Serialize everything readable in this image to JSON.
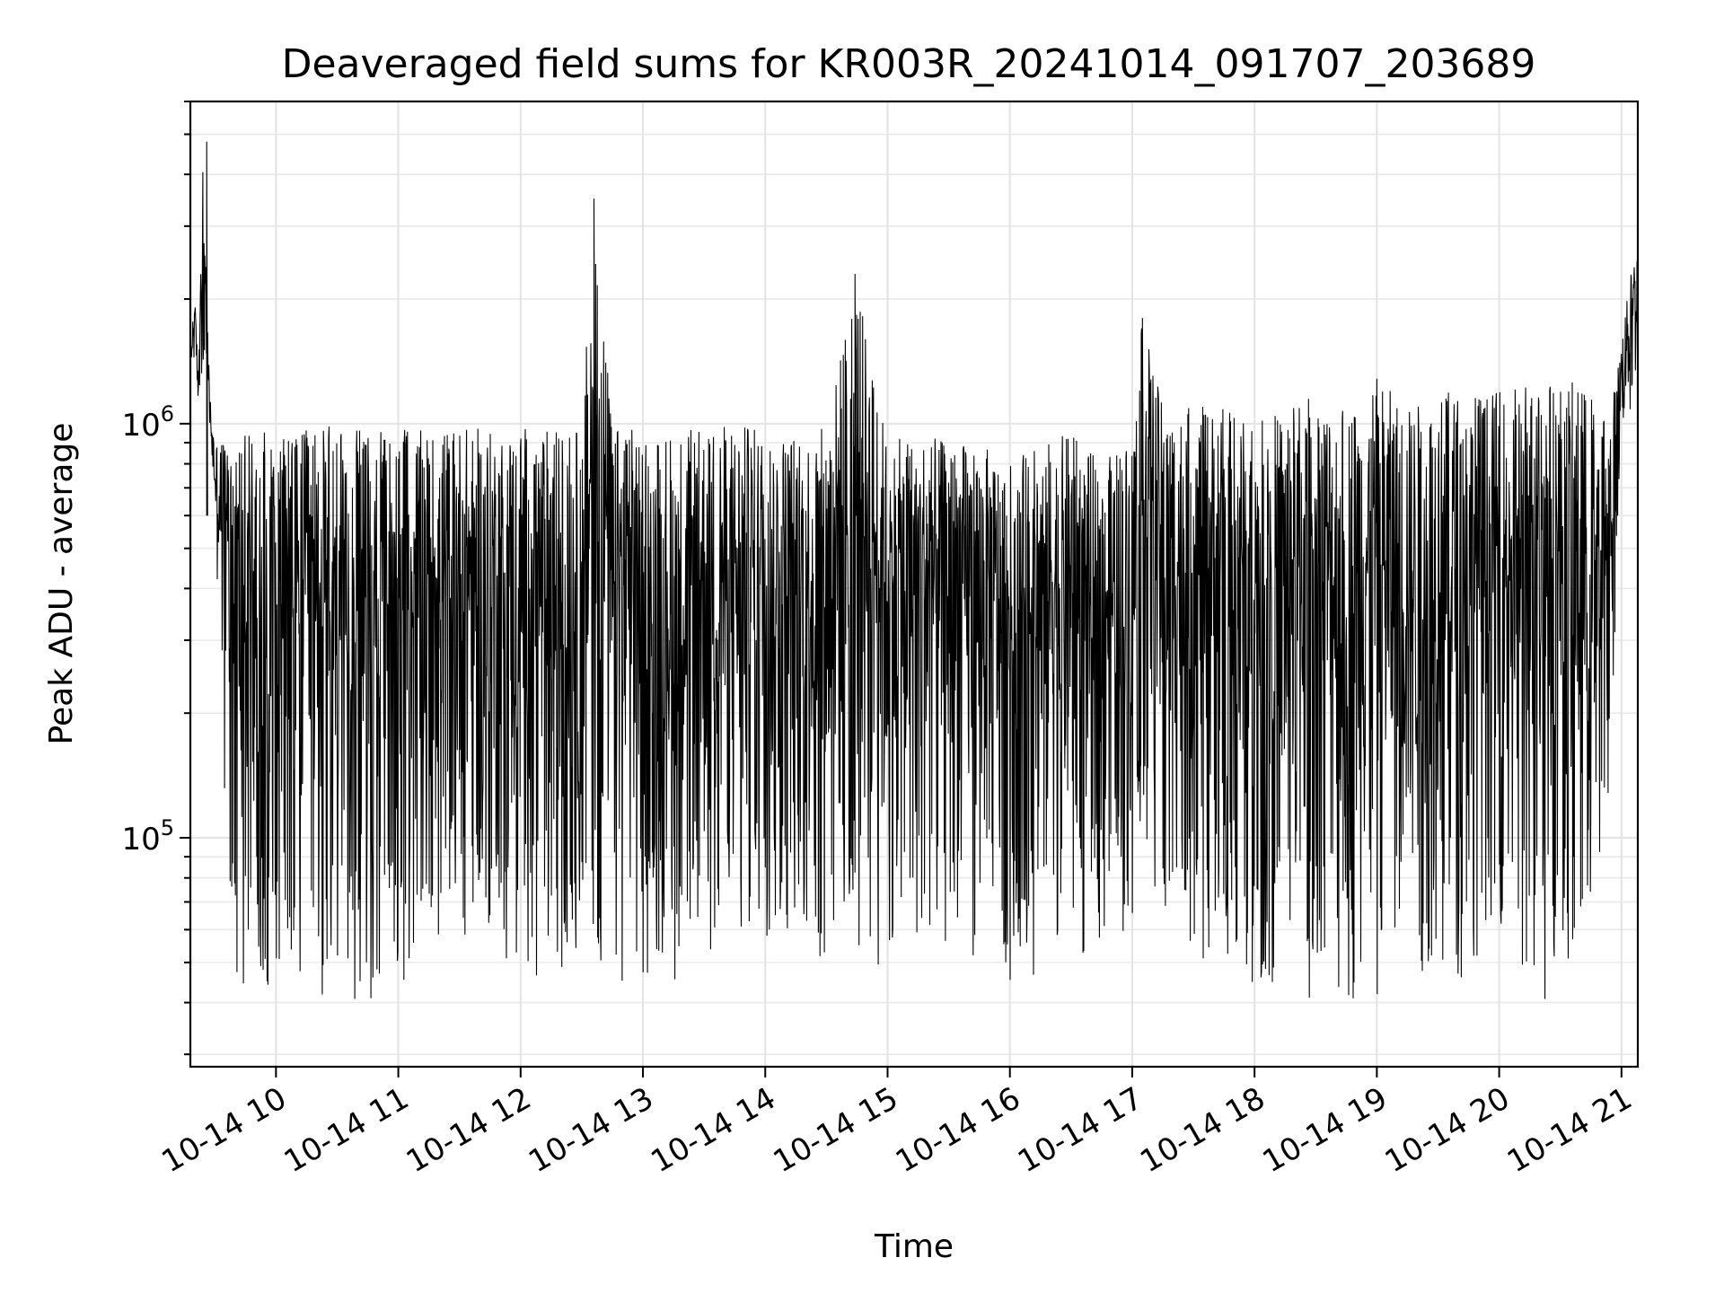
{
  "chart_data": {
    "type": "line",
    "title": "Deaveraged field sums for KR003R_20241014_091707_203689",
    "xlabel": "Time",
    "ylabel": "Peak ADU - average",
    "yscale": "log",
    "grid": true,
    "legend": "none",
    "line_color": "#000000",
    "xlim": [
      "2024-10-14 09:18",
      "2024-10-14 21:08"
    ],
    "ylim": [
      28000,
      6000000
    ],
    "x_ticks": [
      {
        "value": "2024-10-14 10:00",
        "label": "10-14 10"
      },
      {
        "value": "2024-10-14 11:00",
        "label": "10-14 11"
      },
      {
        "value": "2024-10-14 12:00",
        "label": "10-14 12"
      },
      {
        "value": "2024-10-14 13:00",
        "label": "10-14 13"
      },
      {
        "value": "2024-10-14 14:00",
        "label": "10-14 14"
      },
      {
        "value": "2024-10-14 15:00",
        "label": "10-14 15"
      },
      {
        "value": "2024-10-14 16:00",
        "label": "10-14 16"
      },
      {
        "value": "2024-10-14 17:00",
        "label": "10-14 17"
      },
      {
        "value": "2024-10-14 18:00",
        "label": "10-14 18"
      },
      {
        "value": "2024-10-14 19:00",
        "label": "10-14 19"
      },
      {
        "value": "2024-10-14 20:00",
        "label": "10-14 20"
      },
      {
        "value": "2024-10-14 21:00",
        "label": "10-14 21"
      }
    ],
    "y_ticks": [
      {
        "value": 100000,
        "base": "10",
        "exp": "5"
      },
      {
        "value": 1000000,
        "base": "10",
        "exp": "6"
      }
    ],
    "series": [
      {
        "x": [
          "2024-10-14 09:18",
          "2024-10-14 09:20",
          "2024-10-14 09:22",
          "2024-10-14 09:24",
          "2024-10-14 09:26",
          "2024-10-14 09:28",
          "2024-10-14 09:30",
          "2024-10-14 09:35",
          "2024-10-14 09:40",
          "2024-10-14 09:45",
          "2024-10-14 09:50",
          "2024-10-14 10:00",
          "2024-10-14 10:15",
          "2024-10-14 10:30",
          "2024-10-14 10:45",
          "2024-10-14 11:00",
          "2024-10-14 11:15",
          "2024-10-14 11:30",
          "2024-10-14 11:45",
          "2024-10-14 12:00",
          "2024-10-14 12:15",
          "2024-10-14 12:30",
          "2024-10-14 12:36",
          "2024-10-14 12:45",
          "2024-10-14 13:00",
          "2024-10-14 13:15",
          "2024-10-14 13:30",
          "2024-10-14 13:45",
          "2024-10-14 14:00",
          "2024-10-14 14:15",
          "2024-10-14 14:30",
          "2024-10-14 14:44",
          "2024-10-14 15:00",
          "2024-10-14 15:15",
          "2024-10-14 15:30",
          "2024-10-14 15:45",
          "2024-10-14 16:00",
          "2024-10-14 16:15",
          "2024-10-14 16:30",
          "2024-10-14 16:45",
          "2024-10-14 17:00",
          "2024-10-14 17:05",
          "2024-10-14 17:15",
          "2024-10-14 17:30",
          "2024-10-14 17:45",
          "2024-10-14 18:00",
          "2024-10-14 18:15",
          "2024-10-14 18:30",
          "2024-10-14 18:45",
          "2024-10-14 19:00",
          "2024-10-14 19:15",
          "2024-10-14 19:30",
          "2024-10-14 19:45",
          "2024-10-14 20:00",
          "2024-10-14 20:15",
          "2024-10-14 20:30",
          "2024-10-14 20:45",
          "2024-10-14 20:55",
          "2024-10-14 21:00",
          "2024-10-14 21:05",
          "2024-10-14 21:08"
        ],
        "y_high": [
          1500000,
          2100000,
          1300000,
          4800000,
          1900000,
          1100000,
          900000,
          950000,
          980000,
          950000,
          960000,
          980000,
          970000,
          1000000,
          950000,
          980000,
          960000,
          1000000,
          960000,
          1000000,
          980000,
          970000,
          3500000,
          1000000,
          980000,
          960000,
          980000,
          1000000,
          980000,
          960000,
          980000,
          2300000,
          900000,
          950000,
          900000,
          900000,
          800000,
          900000,
          950000,
          800000,
          950000,
          1800000,
          1100000,
          1100000,
          1100000,
          1000000,
          1100000,
          1200000,
          1100000,
          1300000,
          1100000,
          1200000,
          1200000,
          1200000,
          1300000,
          1300000,
          1200000,
          1100000,
          1600000,
          2400000,
          2700000
        ],
        "y_low": [
          1200000,
          1300000,
          1100000,
          1200000,
          1100000,
          800000,
          500000,
          120000,
          45000,
          40000,
          42000,
          40000,
          40000,
          38000,
          40000,
          42000,
          60000,
          50000,
          45000,
          48000,
          45000,
          42000,
          40000,
          45000,
          45000,
          45000,
          48000,
          50000,
          55000,
          55000,
          50000,
          48000,
          45000,
          50000,
          55000,
          48000,
          45000,
          45000,
          50000,
          55000,
          60000,
          90000,
          60000,
          45000,
          40000,
          42000,
          42000,
          40000,
          38000,
          40000,
          40000,
          45000,
          45000,
          50000,
          40000,
          40000,
          50000,
          150000,
          800000,
          1000000,
          1100000
        ]
      }
    ]
  }
}
